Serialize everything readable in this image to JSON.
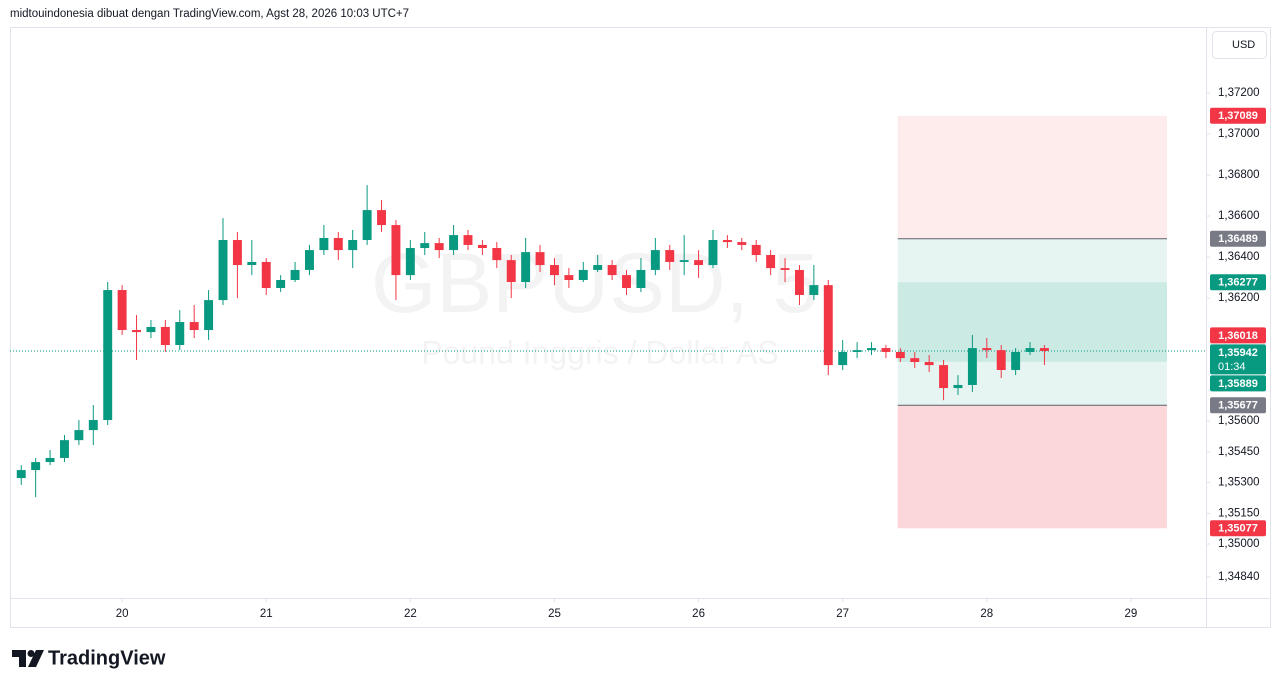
{
  "header": "midtouindonesia dibuat dengan TradingView.com, Agst 28, 2026 10:03 UTC+7",
  "currency_button": "USD",
  "footer_logo": "TradingView",
  "chart_data": {
    "type": "candlestick",
    "watermark_symbol": "GBPUSD, 5",
    "watermark_name": "Pound Inggris / Dollar AS",
    "up_color": "#089981",
    "down_color": "#f23645",
    "x": [
      0.3,
      0.4,
      0.5,
      0.6,
      0.7,
      0.8,
      0.9,
      1.0,
      1.1,
      1.2,
      1.3,
      1.4,
      1.5,
      1.6,
      1.7,
      1.8,
      1.9,
      2.0,
      2.1,
      2.2,
      2.3,
      2.4,
      2.5,
      2.6,
      2.7,
      2.8,
      2.9,
      3.0,
      3.1,
      3.2,
      3.3,
      3.4,
      3.5,
      3.6,
      3.7,
      3.8,
      3.9,
      4.0,
      4.1,
      4.2,
      4.3,
      4.4,
      4.5,
      4.6,
      4.7,
      4.8,
      4.9,
      5.0,
      5.1,
      5.2,
      5.3,
      5.4,
      5.5,
      5.6,
      5.7,
      5.8,
      5.9,
      6.0,
      6.1,
      6.2,
      6.3,
      6.4,
      6.5,
      6.6,
      6.7,
      6.8,
      6.9,
      7.0,
      7.1,
      7.2,
      7.3,
      7.4
    ],
    "open": [
      1.35322,
      1.35361,
      1.354,
      1.3542,
      1.35507,
      1.35556,
      1.35605,
      1.36239,
      1.36044,
      1.36034,
      1.36059,
      1.35971,
      1.36083,
      1.36044,
      1.3619,
      1.36483,
      1.36361,
      1.36376,
      1.36249,
      1.36288,
      1.36337,
      1.36434,
      1.36493,
      1.36434,
      1.36483,
      1.36629,
      1.36556,
      1.36312,
      1.36444,
      1.36468,
      1.36434,
      1.36507,
      1.36459,
      1.36444,
      1.36385,
      1.36278,
      1.36424,
      1.36361,
      1.36312,
      1.36288,
      1.36337,
      1.36361,
      1.36312,
      1.36249,
      1.36337,
      1.36434,
      1.36376,
      1.36385,
      1.36361,
      1.36483,
      1.36473,
      1.36459,
      1.3641,
      1.36346,
      1.36337,
      1.36215,
      1.36263,
      1.35873,
      1.35937,
      1.35946,
      1.35956,
      1.35937,
      1.35907,
      1.35888,
      1.35873,
      1.35761,
      1.35776,
      1.35956,
      1.35946,
      1.35849,
      1.35937,
      1.35956
    ],
    "high": [
      1.35385,
      1.3542,
      1.35459,
      1.35532,
      1.35605,
      1.35678,
      1.36278,
      1.36263,
      1.36117,
      1.36093,
      1.36093,
      1.36141,
      1.36166,
      1.36239,
      1.3659,
      1.36522,
      1.36483,
      1.36395,
      1.36312,
      1.36376,
      1.36459,
      1.36556,
      1.36522,
      1.36532,
      1.36751,
      1.36678,
      1.3658,
      1.36483,
      1.36522,
      1.36493,
      1.36556,
      1.36532,
      1.36483,
      1.36473,
      1.3641,
      1.36493,
      1.36459,
      1.36395,
      1.36346,
      1.36376,
      1.3641,
      1.36385,
      1.36337,
      1.36395,
      1.36493,
      1.36459,
      1.36507,
      1.36434,
      1.36532,
      1.36507,
      1.36493,
      1.36483,
      1.36434,
      1.36395,
      1.36361,
      1.36361,
      1.36288,
      1.35995,
      1.35985,
      1.35985,
      1.35971,
      1.35956,
      1.35937,
      1.35922,
      1.35898,
      1.35824,
      1.3602,
      1.36005,
      1.35971,
      1.35956,
      1.35985,
      1.35971
    ],
    "low": [
      1.35288,
      1.35229,
      1.35385,
      1.354,
      1.35483,
      1.35483,
      1.35581,
      1.3602,
      1.35898,
      1.36005,
      1.35937,
      1.35946,
      1.36005,
      1.35995,
      1.36166,
      1.362,
      1.36312,
      1.36215,
      1.36229,
      1.36278,
      1.36312,
      1.3641,
      1.36385,
      1.36346,
      1.36459,
      1.36522,
      1.3619,
      1.36288,
      1.3641,
      1.36395,
      1.3641,
      1.36434,
      1.3641,
      1.36346,
      1.362,
      1.36249,
      1.36327,
      1.36263,
      1.36249,
      1.36278,
      1.36327,
      1.36288,
      1.36215,
      1.36229,
      1.36312,
      1.36337,
      1.36312,
      1.36298,
      1.36346,
      1.36444,
      1.36434,
      1.36376,
      1.36312,
      1.36278,
      1.36166,
      1.3619,
      1.35824,
      1.35849,
      1.35907,
      1.35922,
      1.35907,
      1.35888,
      1.35859,
      1.35839,
      1.35702,
      1.35727,
      1.35742,
      1.35907,
      1.3581,
      1.35824,
      1.35922,
      1.35873
    ],
    "close": [
      1.35361,
      1.354,
      1.3542,
      1.35507,
      1.35556,
      1.35605,
      1.36239,
      1.36044,
      1.36034,
      1.36059,
      1.35971,
      1.36083,
      1.36044,
      1.3619,
      1.36483,
      1.36361,
      1.36376,
      1.36249,
      1.36288,
      1.36337,
      1.36434,
      1.36493,
      1.36434,
      1.36483,
      1.36629,
      1.36556,
      1.36312,
      1.36444,
      1.36468,
      1.36434,
      1.36507,
      1.36459,
      1.36444,
      1.36385,
      1.36278,
      1.36424,
      1.36361,
      1.36312,
      1.36288,
      1.36337,
      1.36361,
      1.36312,
      1.36249,
      1.36337,
      1.36434,
      1.36376,
      1.36385,
      1.36361,
      1.36483,
      1.36473,
      1.36459,
      1.3641,
      1.36346,
      1.36337,
      1.36215,
      1.36263,
      1.35873,
      1.35937,
      1.35946,
      1.35956,
      1.35937,
      1.35907,
      1.35888,
      1.35873,
      1.35761,
      1.35776,
      1.35956,
      1.35946,
      1.35849,
      1.35937,
      1.35956,
      1.35942
    ],
    "xlim": [
      0.222,
      8.521
    ],
    "xticks": [
      {
        "value": 1,
        "label": "20"
      },
      {
        "value": 2,
        "label": "21"
      },
      {
        "value": 3,
        "label": "22"
      },
      {
        "value": 4,
        "label": "25"
      },
      {
        "value": 5,
        "label": "26"
      },
      {
        "value": 6,
        "label": "27"
      },
      {
        "value": 7,
        "label": "28"
      },
      {
        "value": 8,
        "label": "29"
      }
    ],
    "ylim": [
      1.34737,
      1.37522
    ],
    "yticks": [
      {
        "value": 1.372,
        "label": "1,37200"
      },
      {
        "value": 1.37,
        "label": "1,37000"
      },
      {
        "value": 1.368,
        "label": "1,36800"
      },
      {
        "value": 1.366,
        "label": "1,36600"
      },
      {
        "value": 1.364,
        "label": "1,36400"
      },
      {
        "value": 1.362,
        "label": "1,36200"
      },
      {
        "value": 1.356,
        "label": "1,35600"
      },
      {
        "value": 1.3545,
        "label": "1,35450"
      },
      {
        "value": 1.353,
        "label": "1,35300"
      },
      {
        "value": 1.3515,
        "label": "1,35150"
      },
      {
        "value": 1.35,
        "label": "1,35000"
      },
      {
        "value": 1.3484,
        "label": "1,34840"
      }
    ],
    "grid": false,
    "position_x": [
      6.382,
      8.25
    ],
    "zones": [
      {
        "from": 1.37089,
        "to": 1.36489,
        "color": "rgba(242,54,69,0.10)"
      },
      {
        "from": 1.36489,
        "to": 1.35677,
        "color": "rgba(8,153,129,0.10)"
      },
      {
        "from": 1.36277,
        "to": 1.35889,
        "color": "rgba(8,153,129,0.12)"
      },
      {
        "from": 1.35677,
        "to": 1.35077,
        "color": "rgba(242,54,69,0.20)"
      }
    ],
    "level_lines": {
      "values": [
        1.36489,
        1.35677
      ],
      "color": "#5d606b"
    },
    "price_labels": [
      {
        "value": 1.37089,
        "label": "1,37089",
        "color": "#f23645"
      },
      {
        "value": 1.36489,
        "label": "1,36489",
        "color": "#787b86"
      },
      {
        "value": 1.36277,
        "label": "1,36277",
        "color": "#089981"
      },
      {
        "value": 1.36018,
        "label": "1,36018",
        "color": "#f23645"
      },
      {
        "value": 1.35942,
        "label": "1,35942",
        "countdown": "01:34",
        "color": "#089981",
        "dotted_line": true
      },
      {
        "value": 1.35889,
        "label": "1,35889",
        "color": "#089981"
      },
      {
        "value": 1.35677,
        "label": "1,35677",
        "color": "#787b86"
      },
      {
        "value": 1.35077,
        "label": "1,35077",
        "color": "#f23645"
      }
    ]
  }
}
